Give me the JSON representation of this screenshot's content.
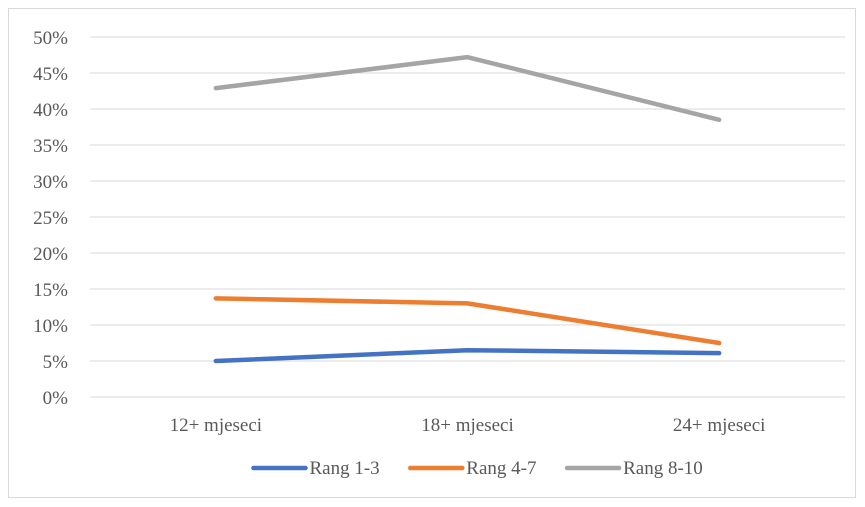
{
  "chart_data": {
    "type": "line",
    "categories": [
      "12+ mjeseci",
      "18+ mjeseci",
      "24+ mjeseci"
    ],
    "series": [
      {
        "name": "Rang 1-3",
        "color": "#4472c4",
        "values": [
          5.0,
          6.5,
          6.1
        ]
      },
      {
        "name": "Rang 4-7",
        "color": "#ed7d31",
        "values": [
          13.7,
          13.0,
          7.5
        ]
      },
      {
        "name": "Rang 8-10",
        "color": "#a5a5a5",
        "values": [
          42.9,
          47.2,
          38.5
        ]
      }
    ],
    "y_ticks": [
      "0%",
      "5%",
      "10%",
      "15%",
      "20%",
      "25%",
      "30%",
      "35%",
      "40%",
      "45%",
      "50%"
    ],
    "ylim": [
      0,
      50
    ],
    "grid": true,
    "legend_position": "bottom",
    "title": "",
    "xlabel": "",
    "ylabel": ""
  }
}
